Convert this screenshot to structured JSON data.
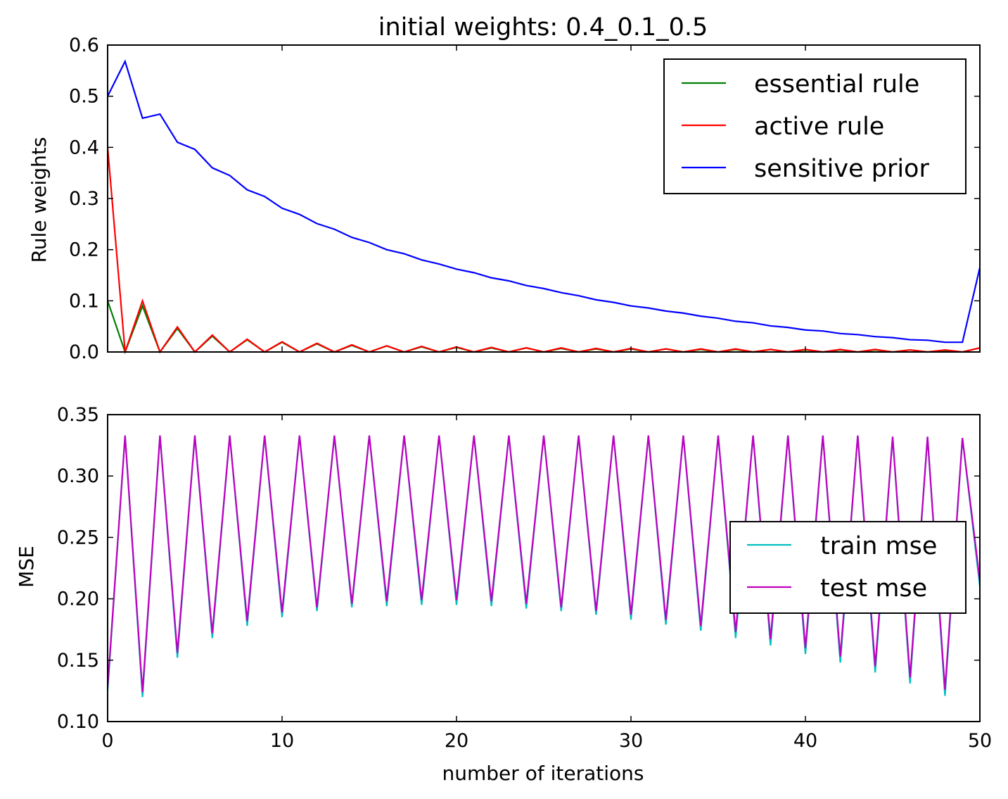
{
  "chart_data": [
    {
      "type": "line",
      "title": "initial weights: 0.4_0.1_0.5",
      "xlabel": "",
      "ylabel": "Rule weights",
      "xlim": [
        0,
        50
      ],
      "ylim": [
        0,
        0.6
      ],
      "yticks": [
        "0.0",
        "0.1",
        "0.2",
        "0.3",
        "0.4",
        "0.5",
        "0.6"
      ],
      "grid": false,
      "legend": "top-right",
      "x": [
        0,
        1,
        2,
        3,
        4,
        5,
        6,
        7,
        8,
        9,
        10,
        11,
        12,
        13,
        14,
        15,
        16,
        17,
        18,
        19,
        20,
        21,
        22,
        23,
        24,
        25,
        26,
        27,
        28,
        29,
        30,
        31,
        32,
        33,
        34,
        35,
        36,
        37,
        38,
        39,
        40,
        41,
        42,
        43,
        44,
        45,
        46,
        47,
        48,
        49,
        50
      ],
      "series": [
        {
          "name": "essential rule",
          "color": "#007f00",
          "values": [
            0.1,
            0.0,
            0.09,
            0.0,
            0.046,
            0.0,
            0.031,
            0.0,
            0.024,
            0.0,
            0.019,
            0.0,
            0.016,
            0.0,
            0.013,
            0.0,
            0.012,
            0.0,
            0.01,
            0.0,
            0.009,
            0.0,
            0.008,
            0.0,
            0.008,
            0.0,
            0.007,
            0.0,
            0.006,
            0.0,
            0.006,
            0.0,
            0.006,
            0.0,
            0.005,
            0.0,
            0.005,
            0.0,
            0.005,
            0.0,
            0.004,
            0.0,
            0.004,
            0.0,
            0.004,
            0.0,
            0.004,
            0.0,
            0.003,
            0.0,
            0.008
          ]
        },
        {
          "name": "active rule",
          "color": "#ff0000",
          "values": [
            0.4,
            0.0,
            0.1,
            0.0,
            0.049,
            0.0,
            0.033,
            0.0,
            0.025,
            0.0,
            0.02,
            0.0,
            0.017,
            0.0,
            0.014,
            0.0,
            0.012,
            0.0,
            0.011,
            0.0,
            0.01,
            0.0,
            0.009,
            0.0,
            0.008,
            0.0,
            0.008,
            0.0,
            0.007,
            0.0,
            0.007,
            0.0,
            0.006,
            0.0,
            0.006,
            0.0,
            0.006,
            0.0,
            0.005,
            0.0,
            0.005,
            0.0,
            0.005,
            0.0,
            0.005,
            0.0,
            0.004,
            0.0,
            0.004,
            0.0,
            0.008
          ]
        },
        {
          "name": "sensitive prior",
          "color": "#0000ff",
          "values": [
            0.5,
            0.568,
            0.457,
            0.465,
            0.41,
            0.396,
            0.36,
            0.345,
            0.317,
            0.304,
            0.281,
            0.269,
            0.251,
            0.24,
            0.224,
            0.214,
            0.2,
            0.192,
            0.18,
            0.172,
            0.162,
            0.155,
            0.145,
            0.139,
            0.13,
            0.124,
            0.116,
            0.11,
            0.102,
            0.097,
            0.09,
            0.086,
            0.08,
            0.076,
            0.07,
            0.066,
            0.06,
            0.057,
            0.051,
            0.048,
            0.043,
            0.041,
            0.036,
            0.034,
            0.03,
            0.028,
            0.024,
            0.023,
            0.019,
            0.019,
            0.165
          ]
        }
      ]
    },
    {
      "type": "line",
      "title": "",
      "xlabel": "number of iterations",
      "ylabel": "MSE",
      "xlim": [
        0,
        50
      ],
      "ylim": [
        0.1,
        0.35
      ],
      "xticks": [
        "0",
        "10",
        "20",
        "30",
        "40",
        "50"
      ],
      "yticks": [
        "0.10",
        "0.15",
        "0.20",
        "0.25",
        "0.30",
        "0.35"
      ],
      "grid": false,
      "legend": "center-right",
      "x": [
        0,
        1,
        2,
        3,
        4,
        5,
        6,
        7,
        8,
        9,
        10,
        11,
        12,
        13,
        14,
        15,
        16,
        17,
        18,
        19,
        20,
        21,
        22,
        23,
        24,
        25,
        26,
        27,
        28,
        29,
        30,
        31,
        32,
        33,
        34,
        35,
        36,
        37,
        38,
        39,
        40,
        41,
        42,
        43,
        44,
        45,
        46,
        47,
        48,
        49,
        50
      ],
      "series": [
        {
          "name": "train mse",
          "color": "#00bfbf",
          "values": [
            0.125,
            0.333,
            0.12,
            0.333,
            0.152,
            0.333,
            0.168,
            0.333,
            0.178,
            0.333,
            0.185,
            0.333,
            0.19,
            0.333,
            0.193,
            0.333,
            0.194,
            0.333,
            0.195,
            0.333,
            0.195,
            0.333,
            0.194,
            0.333,
            0.192,
            0.333,
            0.19,
            0.333,
            0.187,
            0.333,
            0.183,
            0.333,
            0.179,
            0.333,
            0.174,
            0.333,
            0.168,
            0.333,
            0.162,
            0.333,
            0.155,
            0.333,
            0.148,
            0.333,
            0.14,
            0.332,
            0.131,
            0.332,
            0.121,
            0.331,
            0.21
          ]
        },
        {
          "name": "test mse",
          "color": "#bf00bf",
          "values": [
            0.128,
            0.333,
            0.124,
            0.333,
            0.156,
            0.333,
            0.172,
            0.333,
            0.182,
            0.333,
            0.189,
            0.333,
            0.193,
            0.333,
            0.196,
            0.333,
            0.198,
            0.333,
            0.199,
            0.333,
            0.199,
            0.333,
            0.198,
            0.333,
            0.196,
            0.333,
            0.193,
            0.333,
            0.19,
            0.333,
            0.187,
            0.333,
            0.183,
            0.333,
            0.178,
            0.333,
            0.173,
            0.333,
            0.167,
            0.333,
            0.16,
            0.333,
            0.153,
            0.333,
            0.145,
            0.332,
            0.136,
            0.332,
            0.126,
            0.331,
            0.215
          ]
        }
      ]
    }
  ]
}
